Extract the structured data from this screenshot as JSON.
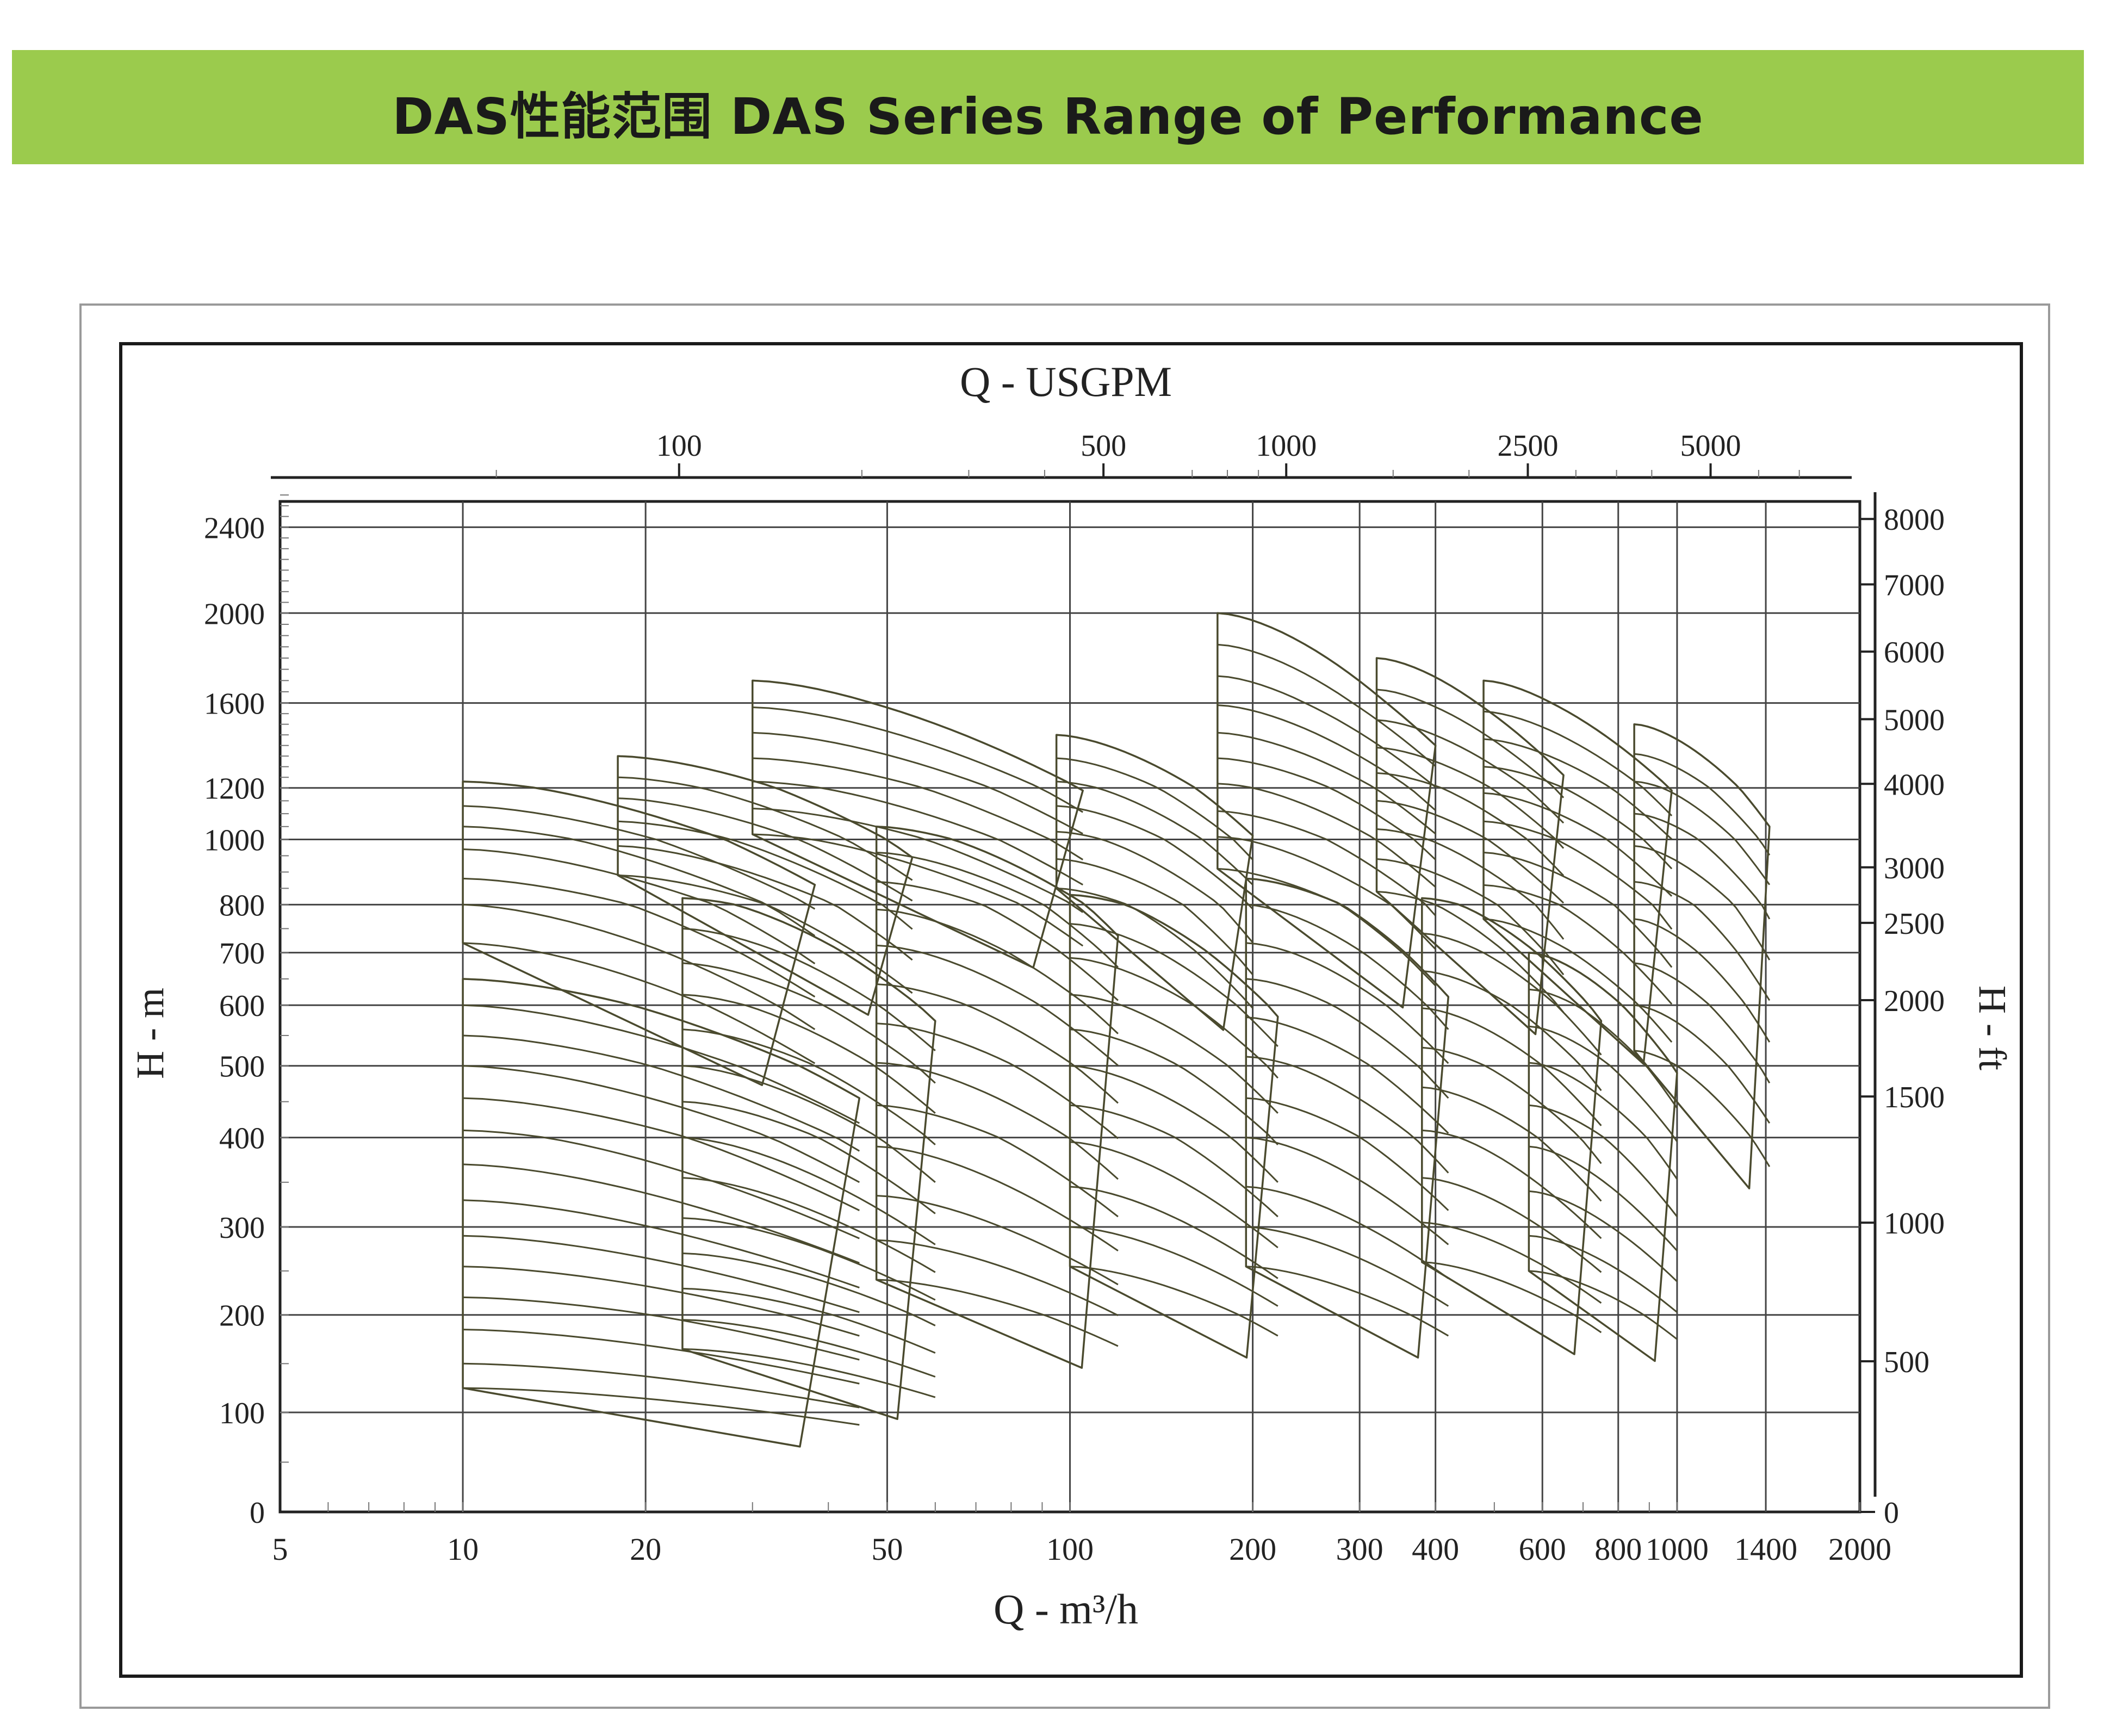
{
  "header": {
    "title": "DAS性能范围 DAS Series Range of Performance",
    "banner_color": "#9bcb4d"
  },
  "chart_data": {
    "type": "area",
    "title": "DAS性能范围 DAS Series Range of Performance",
    "xlabel": "Q - m³/h",
    "x2label": "Q - USGPM",
    "ylabel": "H - m",
    "y2label": "H - ft",
    "x_scale": "log",
    "y_scale": "nonlinear",
    "grid": true,
    "xlim": [
      5,
      2000
    ],
    "ylim": [
      0,
      2600
    ],
    "x_ticks": [
      "5",
      "10",
      "20",
      "50",
      "100",
      "200",
      "300",
      "400",
      "600",
      "800",
      "1000",
      "1400",
      "2000"
    ],
    "x_tick_values": [
      5,
      10,
      20,
      50,
      100,
      200,
      300,
      400,
      600,
      800,
      1000,
      1400,
      2000
    ],
    "x2_ticks": [
      "100",
      "500",
      "1000",
      "2500",
      "5000"
    ],
    "x2_tick_values": [
      100,
      500,
      1000,
      2500,
      5000
    ],
    "y_ticks": [
      "0",
      "100",
      "200",
      "300",
      "400",
      "500",
      "600",
      "700",
      "800",
      "1000",
      "1200",
      "1600",
      "2000",
      "2400"
    ],
    "y_tick_values": [
      0,
      100,
      200,
      300,
      400,
      500,
      600,
      700,
      800,
      1000,
      1200,
      1600,
      2000,
      2400
    ],
    "y2_ticks": [
      "0",
      "500",
      "1000",
      "1500",
      "2000",
      "2500",
      "3000",
      "4000",
      "5000",
      "6000",
      "7000",
      "8000"
    ],
    "y2_tick_values": [
      0,
      500,
      1000,
      1500,
      2000,
      2500,
      3000,
      4000,
      5000,
      6000,
      7000,
      8000
    ],
    "series": [
      {
        "q_min": 10,
        "q_max": 38,
        "h_stages": [
          1230,
          1130,
          1050,
          970,
          880,
          800,
          720
        ]
      },
      {
        "q_min": 10,
        "q_max": 45,
        "h_stages": [
          650,
          600,
          550,
          500,
          455,
          410,
          370,
          330,
          290,
          255,
          220,
          185,
          150,
          125
        ]
      },
      {
        "q_min": 18,
        "q_max": 55,
        "h_stages": [
          1350,
          1250,
          1160,
          1070,
          980,
          890
        ]
      },
      {
        "q_min": 23,
        "q_max": 60,
        "h_stages": [
          820,
          750,
          680,
          620,
          560,
          500,
          450,
          400,
          355,
          310,
          270,
          230,
          195,
          165
        ]
      },
      {
        "q_min": 30,
        "q_max": 105,
        "h_stages": [
          1700,
          1580,
          1460,
          1340,
          1230,
          1120,
          1020
        ]
      },
      {
        "q_min": 48,
        "q_max": 120,
        "h_stages": [
          1050,
          960,
          870,
          790,
          715,
          640,
          570,
          505,
          445,
          390,
          335,
          285,
          240
        ]
      },
      {
        "q_min": 95,
        "q_max": 200,
        "h_stages": [
          1450,
          1340,
          1230,
          1130,
          1030,
          940,
          850
        ]
      },
      {
        "q_min": 100,
        "q_max": 220,
        "h_stages": [
          830,
          760,
          690,
          620,
          560,
          500,
          445,
          395,
          345,
          300,
          255
        ]
      },
      {
        "q_min": 175,
        "q_max": 400,
        "h_stages": [
          2000,
          1860,
          1720,
          1590,
          1460,
          1340,
          1220,
          1110,
          1010,
          910
        ]
      },
      {
        "q_min": 195,
        "q_max": 420,
        "h_stages": [
          880,
          800,
          720,
          650,
          580,
          515,
          455,
          400,
          345,
          300,
          255
        ]
      },
      {
        "q_min": 320,
        "q_max": 650,
        "h_stages": [
          1800,
          1660,
          1520,
          1390,
          1270,
          1150,
          1040,
          940,
          840
        ]
      },
      {
        "q_min": 380,
        "q_max": 750,
        "h_stages": [
          820,
          740,
          665,
          595,
          530,
          470,
          410,
          355,
          305,
          260
        ]
      },
      {
        "q_min": 480,
        "q_max": 980,
        "h_stages": [
          1700,
          1560,
          1430,
          1300,
          1180,
          1070,
          960,
          860,
          770
        ]
      },
      {
        "q_min": 570,
        "q_max": 1000,
        "h_stages": [
          700,
          630,
          565,
          505,
          445,
          390,
          340,
          290,
          250
        ]
      },
      {
        "q_min": 850,
        "q_max": 1420,
        "h_stages": [
          1500,
          1360,
          1230,
          1100,
          980,
          870,
          770,
          680,
          600,
          525
        ]
      }
    ]
  }
}
